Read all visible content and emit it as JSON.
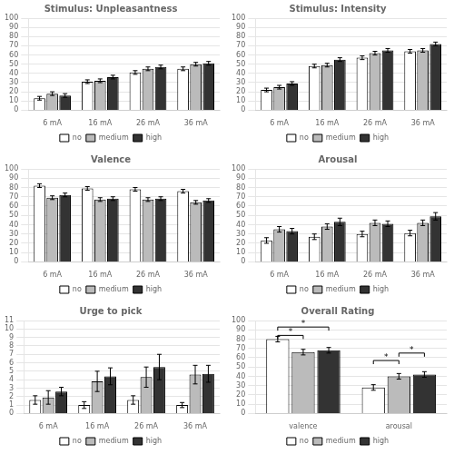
{
  "chart_data": [
    {
      "type": "bar",
      "title": "Stimulus: Unpleasantness",
      "categories": [
        "6 mA",
        "16 mA",
        "26 mA",
        "36 mA"
      ],
      "series": [
        {
          "name": "no",
          "color": "#FFFFFF",
          "values": [
            13,
            31,
            41,
            45
          ],
          "errors": [
            2,
            2,
            2,
            2
          ]
        },
        {
          "name": "medium",
          "color": "#BBBBBB",
          "values": [
            18,
            32,
            45,
            50
          ],
          "errors": [
            2,
            2,
            2,
            2
          ]
        },
        {
          "name": "high",
          "color": "#333333",
          "values": [
            16,
            36,
            47,
            51
          ],
          "errors": [
            2,
            2,
            2,
            2
          ]
        }
      ],
      "ylim": [
        0,
        100
      ],
      "yticks": [
        0,
        10,
        20,
        30,
        40,
        50,
        60,
        70,
        80,
        90,
        100
      ],
      "grid": true,
      "legend": "bottom"
    },
    {
      "type": "bar",
      "title": "Stimulus: Intensity",
      "categories": [
        "6 mA",
        "16 mA",
        "26 mA",
        "36 mA"
      ],
      "series": [
        {
          "name": "no",
          "color": "#FFFFFF",
          "values": [
            22,
            48,
            57,
            64
          ],
          "errors": [
            2,
            2,
            2,
            2
          ]
        },
        {
          "name": "medium",
          "color": "#BBBBBB",
          "values": [
            25,
            49,
            62,
            65
          ],
          "errors": [
            2,
            2,
            2,
            2
          ]
        },
        {
          "name": "high",
          "color": "#333333",
          "values": [
            29,
            55,
            65,
            72
          ],
          "errors": [
            2,
            2,
            2,
            2
          ]
        }
      ],
      "ylim": [
        0,
        100
      ],
      "yticks": [
        0,
        10,
        20,
        30,
        40,
        50,
        60,
        70,
        80,
        90,
        100
      ],
      "grid": true,
      "legend": "bottom"
    },
    {
      "type": "bar",
      "title": "Valence",
      "categories": [
        "6 mA",
        "16 mA",
        "26 mA",
        "36 mA"
      ],
      "series": [
        {
          "name": "no",
          "color": "#FFFFFF",
          "values": [
            82,
            79,
            78,
            76
          ],
          "errors": [
            2,
            2,
            2,
            2
          ]
        },
        {
          "name": "medium",
          "color": "#BBBBBB",
          "values": [
            69,
            67,
            67,
            64
          ],
          "errors": [
            2,
            2,
            2,
            2
          ]
        },
        {
          "name": "high",
          "color": "#333333",
          "values": [
            72,
            68,
            68,
            66
          ],
          "errors": [
            2,
            2,
            2,
            2
          ]
        }
      ],
      "ylim": [
        0,
        100
      ],
      "yticks": [
        0,
        10,
        20,
        30,
        40,
        50,
        60,
        70,
        80,
        90,
        100
      ],
      "grid": true,
      "legend": "bottom"
    },
    {
      "type": "bar",
      "title": "Arousal",
      "categories": [
        "6 mA",
        "16 mA",
        "26 mA",
        "36 mA"
      ],
      "series": [
        {
          "name": "no",
          "color": "#FFFFFF",
          "values": [
            23,
            27,
            30,
            31
          ],
          "errors": [
            3,
            3,
            3,
            3
          ]
        },
        {
          "name": "medium",
          "color": "#BBBBBB",
          "values": [
            35,
            38,
            42,
            42
          ],
          "errors": [
            3,
            3,
            3,
            3
          ]
        },
        {
          "name": "high",
          "color": "#333333",
          "values": [
            33,
            43,
            41,
            49
          ],
          "errors": [
            3,
            4,
            3,
            4
          ]
        }
      ],
      "ylim": [
        0,
        100
      ],
      "yticks": [
        0,
        10,
        20,
        30,
        40,
        50,
        60,
        70,
        80,
        90,
        100
      ],
      "grid": true,
      "legend": "bottom"
    },
    {
      "type": "bar",
      "title": "Urge to pick",
      "categories": [
        "6 mA",
        "16 mA",
        "26 mA",
        "36 mA"
      ],
      "series": [
        {
          "name": "no",
          "color": "#FFFFFF",
          "values": [
            1.6,
            1.0,
            1.6,
            1.0
          ],
          "errors": [
            0.5,
            0.4,
            0.5,
            0.3
          ]
        },
        {
          "name": "medium",
          "color": "#BBBBBB",
          "values": [
            1.9,
            3.8,
            4.3,
            4.6
          ],
          "errors": [
            0.8,
            1.2,
            1.2,
            1.1
          ]
        },
        {
          "name": "high",
          "color": "#333333",
          "values": [
            2.6,
            4.4,
            5.5,
            4.7
          ],
          "errors": [
            0.5,
            1.0,
            1.5,
            1.0
          ]
        }
      ],
      "ylim": [
        0,
        11
      ],
      "yticks": [
        0,
        1,
        2,
        3,
        4,
        5,
        6,
        7,
        8,
        9,
        10,
        11
      ],
      "grid": true,
      "legend": "bottom"
    },
    {
      "type": "bar",
      "title": "Overall Rating",
      "categories": [
        "valence",
        "arousal"
      ],
      "series": [
        {
          "name": "no",
          "color": "#FFFFFF",
          "values": [
            80,
            28
          ],
          "errors": [
            3,
            3
          ]
        },
        {
          "name": "medium",
          "color": "#BBBBBB",
          "values": [
            66,
            40
          ],
          "errors": [
            3,
            3
          ]
        },
        {
          "name": "high",
          "color": "#333333",
          "values": [
            68,
            42
          ],
          "errors": [
            3,
            3
          ]
        }
      ],
      "ylim": [
        0,
        100
      ],
      "yticks": [
        0,
        10,
        20,
        30,
        40,
        50,
        60,
        70,
        80,
        90,
        100
      ],
      "grid": true,
      "legend": "bottom",
      "annotations": [
        {
          "text": "*",
          "y": 93,
          "start": {
            "category": "valence",
            "series": "no"
          },
          "end": {
            "category": "valence",
            "series": "high"
          }
        },
        {
          "text": "*",
          "y": 84,
          "start": {
            "category": "valence",
            "series": "no"
          },
          "end": {
            "category": "valence",
            "series": "medium"
          }
        },
        {
          "text": "*",
          "y": 65,
          "start": {
            "category": "arousal",
            "series": "medium"
          },
          "end": {
            "category": "arousal",
            "series": "high"
          }
        },
        {
          "text": "*",
          "y": 57,
          "start": {
            "category": "arousal",
            "series": "no"
          },
          "end": {
            "category": "arousal",
            "series": "medium"
          }
        }
      ]
    }
  ]
}
